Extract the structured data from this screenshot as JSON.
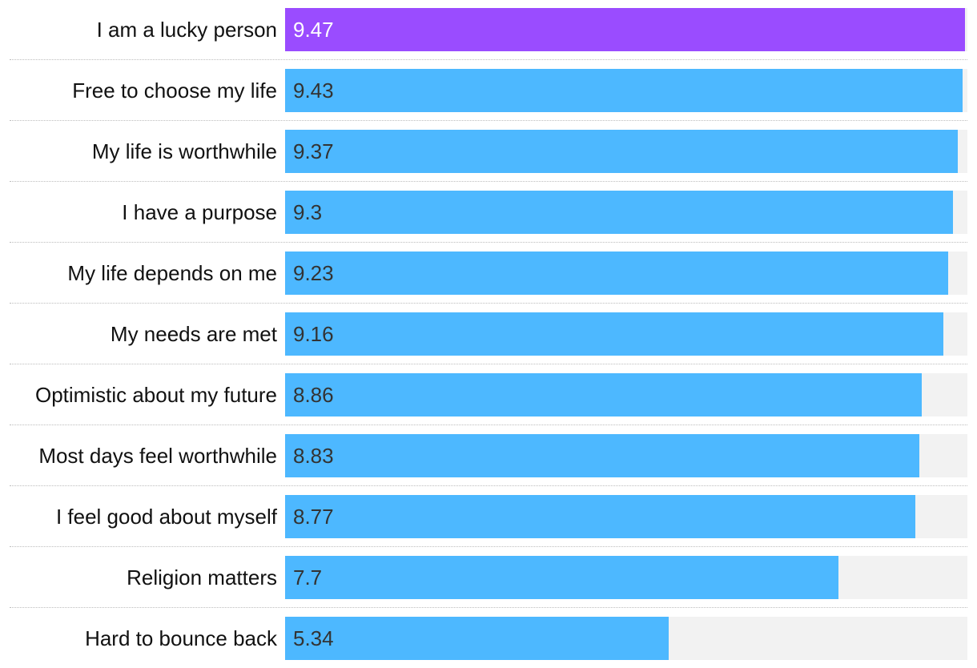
{
  "chart_data": {
    "type": "bar",
    "orientation": "horizontal",
    "title": "",
    "xlabel": "",
    "ylabel": "",
    "xlim": [
      0,
      9.5
    ],
    "grid": false,
    "categories": [
      "I am a lucky person",
      "Free to choose my life",
      "My life is worthwhile",
      "I have a purpose",
      "My life depends on me",
      "My needs are met",
      "Optimistic about my future",
      "Most days feel worthwhile",
      "I feel good about myself",
      "Religion matters",
      "Hard to bounce back"
    ],
    "values": [
      9.47,
      9.43,
      9.37,
      9.3,
      9.23,
      9.16,
      8.86,
      8.83,
      8.77,
      7.7,
      5.34
    ],
    "value_labels": [
      "9.47",
      "9.43",
      "9.37",
      "9.3",
      "9.23",
      "9.16",
      "8.86",
      "8.83",
      "8.77",
      "7.7",
      "5.34"
    ],
    "highlight_index": 0,
    "colors": {
      "highlight_bar": "#9a4cff",
      "bar": "#4db8ff",
      "track": "#f2f2f2",
      "highlight_value_text": "#ffffff",
      "value_text": "#333333",
      "label_text": "#111111",
      "divider": "#bdbdbd"
    }
  }
}
